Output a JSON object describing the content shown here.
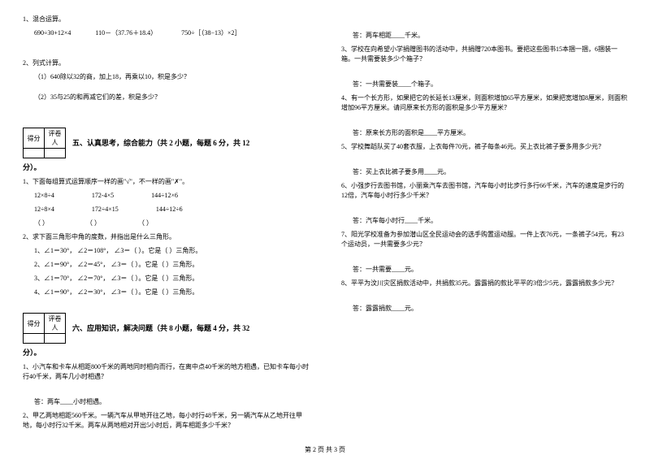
{
  "colors": {
    "text": "#000000",
    "bg": "#ffffff",
    "border": "#000000"
  },
  "fonts": {
    "body_size_pt": 8,
    "title_size_pt": 9
  },
  "left": {
    "q1": {
      "num": "1、混合运算。",
      "row": [
        "690÷30+12×4",
        "110－（37.76＋18.4）",
        "750÷［（38−13）×2］"
      ]
    },
    "q2": {
      "num": "2、列式计算。",
      "a": "（1）640除以32的商，加上18，再乘以10，积是多少？",
      "b": "（2）35与25的和再减它们的差，积是多少？"
    },
    "score_labels": [
      "得分",
      "评卷人"
    ],
    "sec5": {
      "title": "五、认真思考，综合能力（共 2 小题，每题 6 分，共 12",
      "cont": "分）。",
      "q1": {
        "num": "1、下面每组算式运算顺序一样的画\"√\"，不一样的画\"✗\"。",
        "rows": [
          [
            "12×8÷4",
            "172-4×5",
            "144÷12×6"
          ],
          [
            "12÷8×4",
            "172÷4×15",
            "144÷12÷6"
          ],
          [
            "（    ）",
            "（    ）",
            "（    ）"
          ]
        ]
      },
      "q2": {
        "num": "2、求下面三角形中角的度数，并指出是什么三角形。",
        "rows": [
          "1、∠1＝30°， ∠2＝108°， ∠3＝（    ）。它是（        ）三角形。",
          "2、∠1＝90°， ∠2＝45°， ∠3＝（    ）。它是（        ）三角形。",
          "3、∠1＝70°， ∠2＝70°， ∠3＝（    ）。它是（        ）三角形。",
          "4、∠1＝90°， ∠2＝30°， ∠3＝（    ）。它是（        ）三角形。"
        ]
      }
    },
    "sec6": {
      "title": "六、应用知识，解决问题（共 8 小题，每题 4 分，共 32",
      "cont": "分）。",
      "q1": {
        "text": "1、小汽车和卡车从相距800千米的两地同时相向而行，在离中点40千米的地方相遇，已知卡车每小时行40千米，两车几小时相遇？",
        "ans": "答：两车____小时相遇。"
      },
      "q2": {
        "text": "2、甲乙两地相距560千米。一辆汽车从甲地开往乙地，每小时行48千米，另一辆汽车从乙地开往甲地，每小时行32千米。两车从两地相对开出5小时后，两车相距多少千米？"
      }
    }
  },
  "right": {
    "q2ans": "答：两车相距____千米。",
    "q3": {
      "text": "3、学校在向希望小学捐赠图书的活动中，共捐赠720本图书。要把这些图书15本捆一捆，6捆装一箱。一共需要装多少个箱子？",
      "ans": "答：一共需要装____个箱子。"
    },
    "q4": {
      "text": "4、有一个长方形，如果把它的长延长13厘米，则面积增加65平方厘米，如果把宽增加8厘米，则面积增加96平方厘米。请问原来长方形的面积是多少平方厘米？",
      "ans": "答：原来长方形的面积是____平方厘米。"
    },
    "q5": {
      "text": "5、学校舞蹈队买了40套衣服，上衣每件70元，裤子每条46元。买上衣比裤子要多用多少元？",
      "ans": "答：买上衣比裤子要多用____元。"
    },
    "q6": {
      "text": "6、小强步行去图书馆，小丽乘汽车去图书馆，汽车每小时比步行多行66千米，汽车的速度是步行的12倍，汽车每小时行多少千米？",
      "ans": "答：汽车每小时行____千米。"
    },
    "q7": {
      "text": "7、阳光学校准备为参加潜山区全民运动会的选手购置运动服。一件上衣76元，一条裤子54元，有23个运动员，一共需要多少元？",
      "ans": "答：一共需要____元。"
    },
    "q8": {
      "text": "8、平平为汶川灾区捐款活动中，共捐款35元。露露捐的款比平平的3倍少5元，露露捐款多少元？",
      "ans": "答：露露捐款____元。"
    }
  },
  "footer": "第 2 页 共 3 页"
}
